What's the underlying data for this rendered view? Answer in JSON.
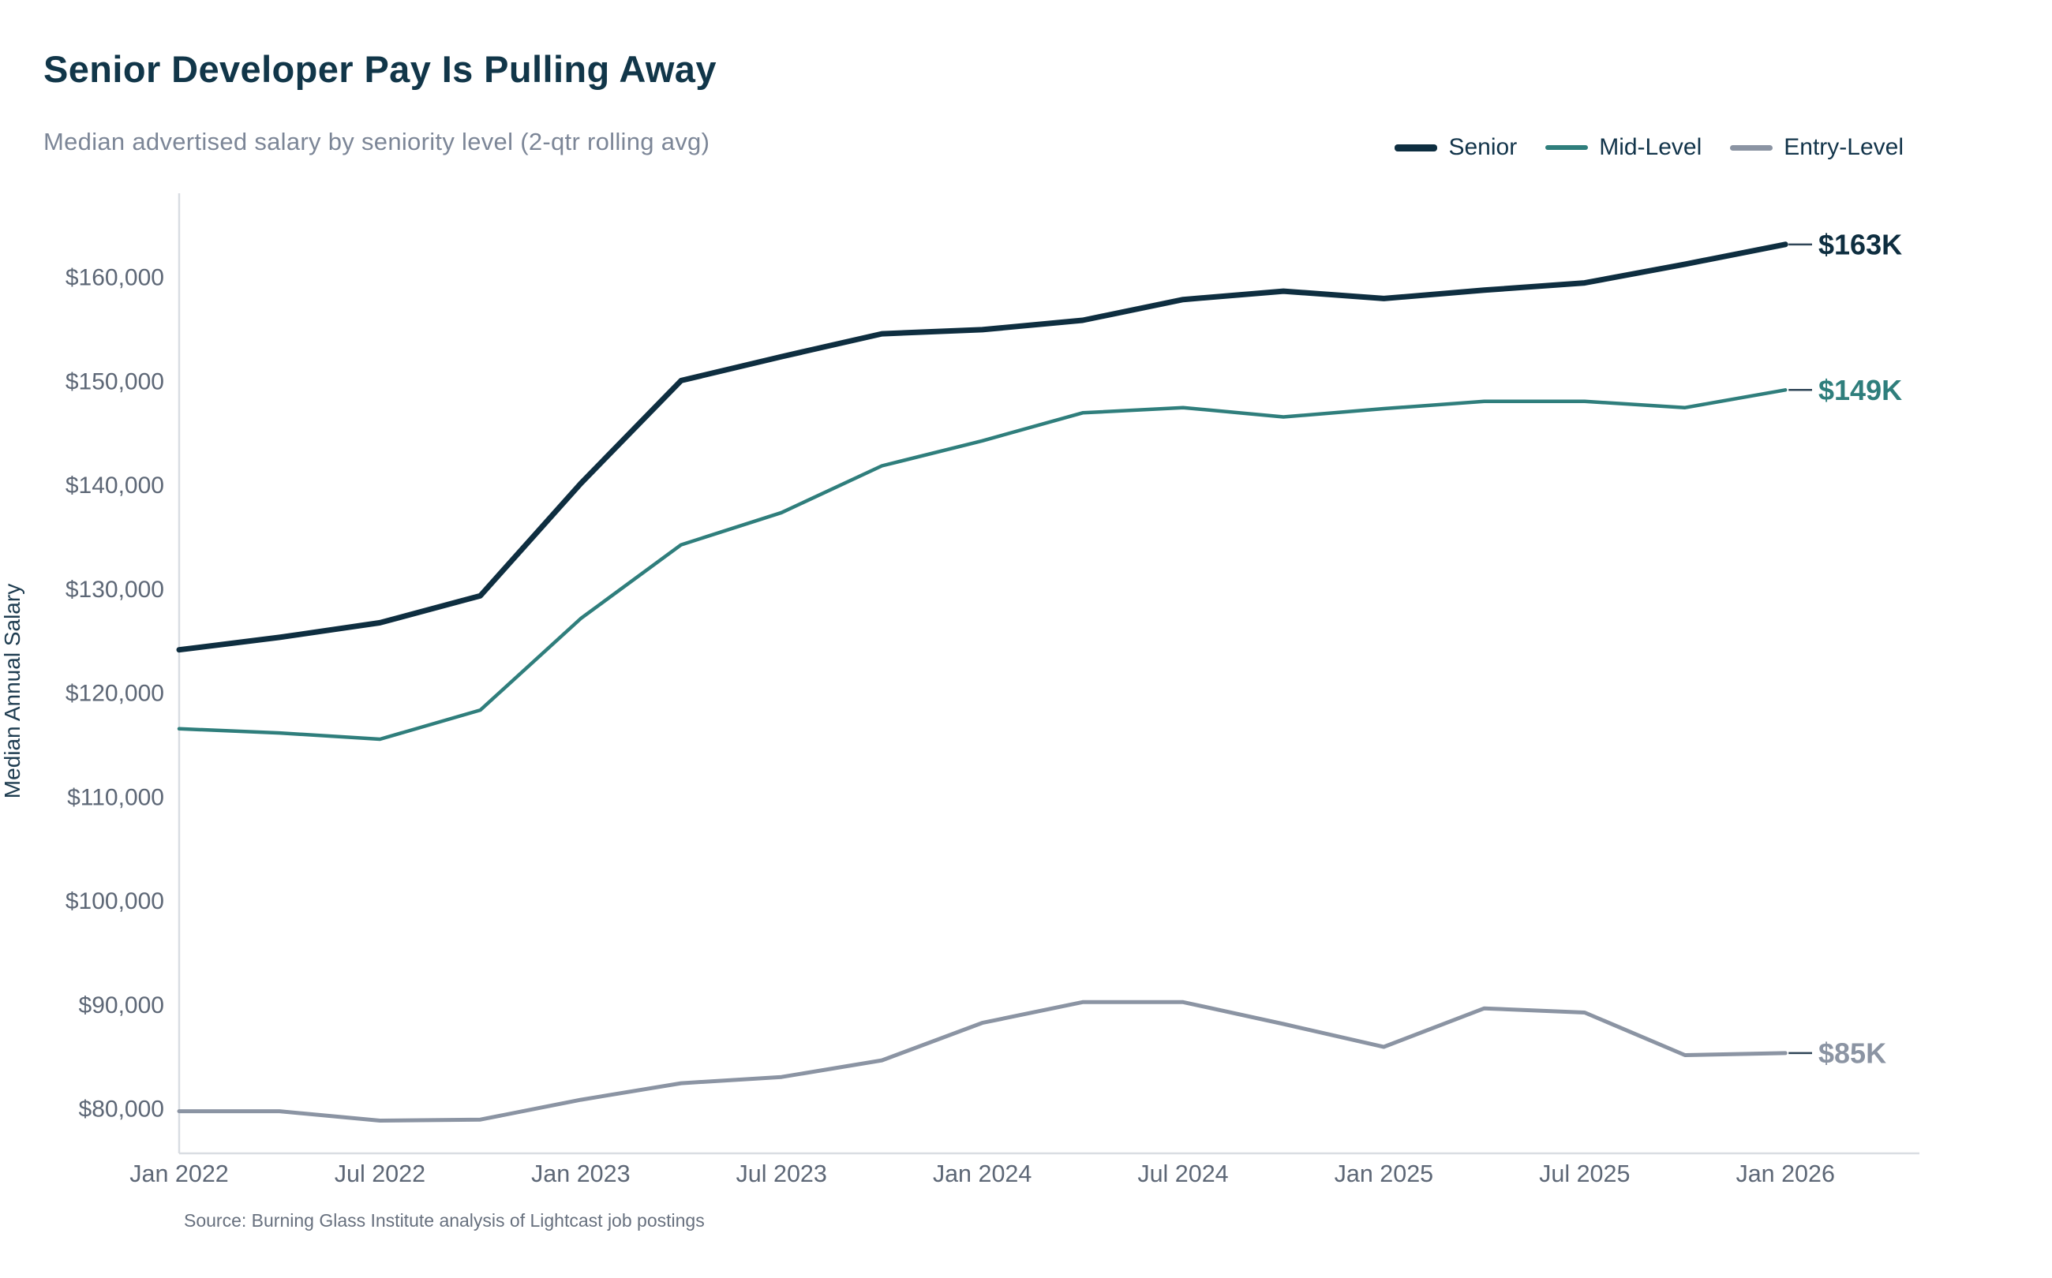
{
  "header": {
    "title": "Senior Developer Pay Is Pulling Away",
    "subtitle": "Median advertised salary by seniority level (2-qtr rolling avg)"
  },
  "footer": {
    "source": "Source: Burning Glass Institute analysis of Lightcast job postings"
  },
  "colors": {
    "title": "#113649",
    "subtitle": "#7c8697",
    "legend_text": "#12344a",
    "tick_label": "#5d6776",
    "axis_line": "#d9dde2",
    "y_axis_title": "#1e3c50",
    "source_text": "#67707e",
    "connector": "#2f4557",
    "background": "#ffffff"
  },
  "chart_data": {
    "type": "line",
    "title": "Senior Developer Pay Is Pulling Away",
    "subtitle": "Median advertised salary by seniority level (2-qtr rolling avg)",
    "ylabel": "Median Annual Salary",
    "xlabel": "",
    "grid": false,
    "legend_position": "top-right",
    "ylim": [
      75800,
      168000
    ],
    "y_tick_values": [
      80000,
      90000,
      100000,
      110000,
      120000,
      130000,
      140000,
      150000,
      160000
    ],
    "y_tick_labels": [
      "$80,000",
      "$90,000",
      "$100,000",
      "$110,000",
      "$120,000",
      "$130,000",
      "$140,000",
      "$150,000",
      "$160,000"
    ],
    "categories": [
      "Jan 2022",
      "Apr 2022",
      "Jul 2022",
      "Oct 2022",
      "Jan 2023",
      "Apr 2023",
      "Jul 2023",
      "Oct 2023",
      "Jan 2024",
      "Apr 2024",
      "Jul 2024",
      "Oct 2024",
      "Jan 2025",
      "Apr 2025",
      "Jul 2025",
      "Oct 2025",
      "Jan 2026"
    ],
    "x_tick_indices": [
      0,
      2,
      4,
      6,
      8,
      10,
      12,
      14,
      16
    ],
    "x_tick_labels": [
      "Jan 2022",
      "Jul 2022",
      "Jan 2023",
      "Jul 2023",
      "Jan 2024",
      "Jul 2024",
      "Jan 2025",
      "Jul 2025",
      "Jan 2026"
    ],
    "series": [
      {
        "name": "Senior",
        "color": "#0e2e40",
        "line_width": 7,
        "legend_swatch_height": 9,
        "end_label": "$163K",
        "values_usd": [
          124200,
          125400,
          126800,
          129400,
          140200,
          150100,
          152400,
          154600,
          155000,
          155900,
          157900,
          158700,
          158000,
          158800,
          159500,
          161300,
          163200
        ]
      },
      {
        "name": "Mid-Level",
        "color": "#2f7e7c",
        "line_width": 4.5,
        "legend_swatch_height": 6,
        "end_label": "$149K",
        "values_usd": [
          116600,
          116200,
          115600,
          118400,
          127200,
          134300,
          137400,
          141900,
          144300,
          147000,
          147500,
          146600,
          147400,
          148100,
          148100,
          147500,
          149200
        ]
      },
      {
        "name": "Entry-Level",
        "color": "#8b94a3",
        "line_width": 5,
        "legend_swatch_height": 7,
        "end_label": "$85K",
        "values_usd": [
          79800,
          79800,
          78900,
          79000,
          80900,
          82500,
          83100,
          84700,
          88300,
          90300,
          90300,
          88200,
          86000,
          89700,
          89300,
          85200,
          85400
        ]
      }
    ]
  }
}
